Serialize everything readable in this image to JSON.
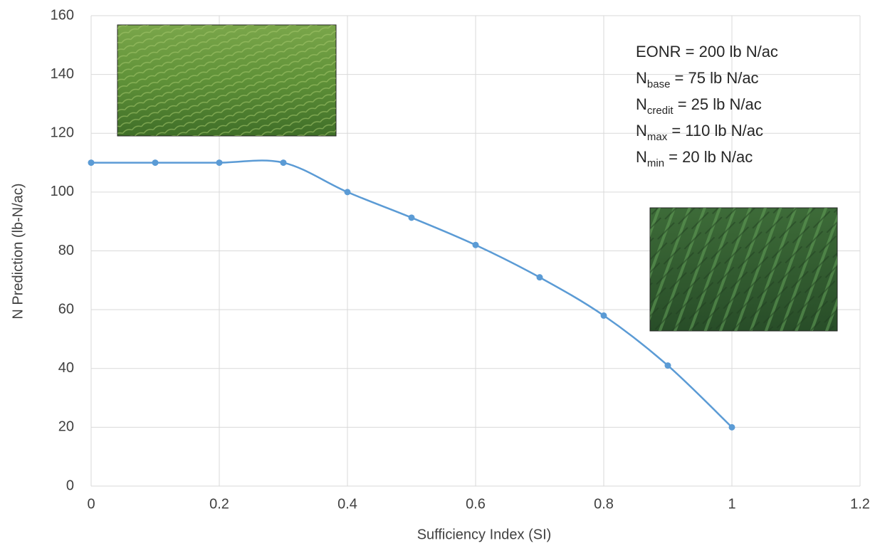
{
  "chart_data": {
    "type": "line",
    "x_label": "Sufficiency Index (SI)",
    "y_label": "N Prediction (lb-N/ac)",
    "x": [
      0,
      0.1,
      0.2,
      0.3,
      0.4,
      0.5,
      0.6,
      0.7,
      0.8,
      0.9,
      1
    ],
    "series": [
      {
        "color": "#5b9bd5",
        "values": [
          110,
          110,
          110,
          110,
          100,
          91.3,
          82,
          71,
          58,
          41,
          20
        ]
      }
    ],
    "xlim": [
      0,
      1.2
    ],
    "xticks": [
      0,
      0.2,
      0.4,
      0.6,
      0.8,
      1,
      1.2
    ],
    "ylim": [
      0,
      160
    ],
    "yticks": [
      0,
      20,
      40,
      60,
      80,
      100,
      120,
      140,
      160
    ],
    "grid": true,
    "smooth": true,
    "annotations": [
      {
        "text": "EONR = 200 lb N/ac"
      },
      {
        "text": "N",
        "subscript": "base",
        "suffix": " = 75 lb N/ac"
      },
      {
        "text": "N",
        "subscript": "credit",
        "suffix": " = 25 lb N/ac"
      },
      {
        "text": "N",
        "subscript": "max",
        "suffix": " = 110 lb N/ac"
      },
      {
        "text": "N",
        "subscript": "min",
        "suffix": " = 20 lb N/ac"
      }
    ]
  }
}
